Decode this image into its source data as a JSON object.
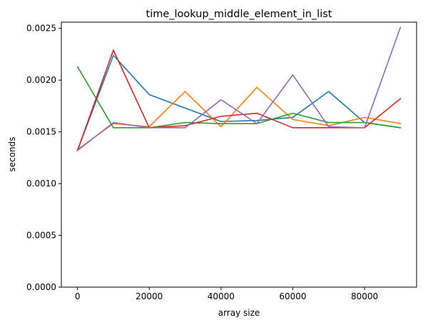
{
  "chart_data": {
    "type": "line",
    "title": "time_lookup_middle_element_in_list",
    "xlabel": "array size",
    "ylabel": "seconds",
    "xlim": [
      -4500,
      94500
    ],
    "ylim": [
      0,
      0.00256
    ],
    "x_ticks": [
      0,
      20000,
      40000,
      60000,
      80000
    ],
    "x_tick_labels": [
      "0",
      "20000",
      "40000",
      "60000",
      "80000"
    ],
    "y_ticks": [
      0,
      0.0005,
      0.001,
      0.0015,
      0.002,
      0.0025
    ],
    "y_tick_labels": [
      "0.0000",
      "0.0005",
      "0.0010",
      "0.0015",
      "0.0020",
      "0.0025"
    ],
    "grid": false,
    "legend": "none",
    "x": [
      0,
      10000,
      20000,
      30000,
      40000,
      50000,
      60000,
      70000,
      80000,
      90000
    ],
    "series": [
      {
        "color": "#1f77b4",
        "values": [
          0.00132,
          0.00224,
          0.00186,
          0.00173,
          0.0016,
          0.00161,
          0.00164,
          0.00189,
          0.00159,
          0.00154
        ]
      },
      {
        "color": "#ff7f0e",
        "values": [
          0.00133,
          0.00158,
          0.00155,
          0.00189,
          0.00155,
          0.00193,
          0.00162,
          0.00156,
          0.00164,
          0.00158
        ]
      },
      {
        "color": "#2ca02c",
        "values": [
          0.00213,
          0.00154,
          0.00154,
          0.00159,
          0.00158,
          0.00158,
          0.00168,
          0.00159,
          0.00159,
          0.00154
        ]
      },
      {
        "color": "#d62728",
        "values": [
          0.00132,
          0.00229,
          0.00154,
          0.00156,
          0.00165,
          0.00168,
          0.00154,
          0.00154,
          0.00154,
          0.00182
        ]
      },
      {
        "color": "#9467bd",
        "values": [
          0.00132,
          0.00159,
          0.00154,
          0.00154,
          0.00181,
          0.00158,
          0.00205,
          0.00155,
          0.00154,
          0.00251
        ]
      }
    ]
  }
}
